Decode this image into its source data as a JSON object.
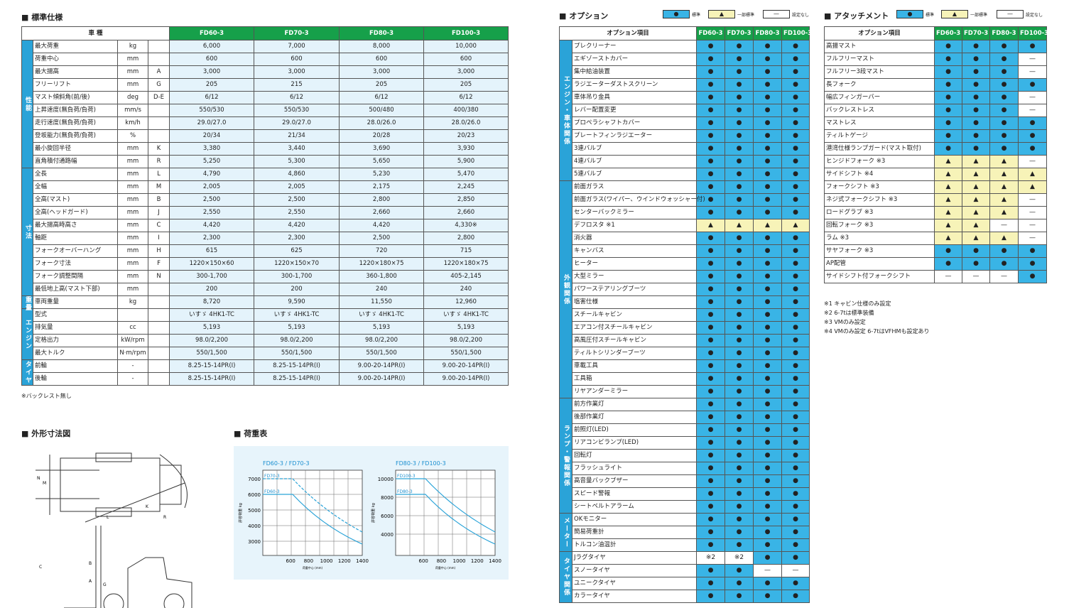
{
  "spec": {
    "title": "■ 標準仕様",
    "header": [
      "車 種",
      "FD60-3",
      "FD70-3",
      "FD80-3",
      "FD100-3"
    ],
    "groups": [
      {
        "label": "性能",
        "rows": [
          [
            "最大荷重",
            "kg",
            "",
            "6,000",
            "7,000",
            "8,000",
            "10,000"
          ],
          [
            "荷重中心",
            "mm",
            "",
            "600",
            "600",
            "600",
            "600"
          ],
          [
            "最大揚高",
            "mm",
            "A",
            "3,000",
            "3,000",
            "3,000",
            "3,000"
          ],
          [
            "フリーリフト",
            "mm",
            "G",
            "205",
            "215",
            "205",
            "205"
          ],
          [
            "マスト傾斜角(前/後)",
            "deg",
            "D-E",
            "6/12",
            "6/12",
            "6/12",
            "6/12"
          ],
          [
            "上昇速度(無負荷/負荷)",
            "mm/s",
            "",
            "550/530",
            "550/530",
            "500/480",
            "400/380"
          ],
          [
            "走行速度(無負荷/負荷)",
            "km/h",
            "",
            "29.0/27.0",
            "29.0/27.0",
            "28.0/26.0",
            "28.0/26.0"
          ],
          [
            "登坂能力(無負荷/負荷)",
            "%",
            "",
            "20/34",
            "21/34",
            "20/28",
            "20/23"
          ],
          [
            "最小旋回半径",
            "mm",
            "K",
            "3,380",
            "3,440",
            "3,690",
            "3,930"
          ],
          [
            "直角積付通路幅",
            "mm",
            "R",
            "5,250",
            "5,300",
            "5,650",
            "5,900"
          ]
        ]
      },
      {
        "label": "寸法",
        "rows": [
          [
            "全長",
            "mm",
            "L",
            "4,790",
            "4,860",
            "5,230",
            "5,470"
          ],
          [
            "全幅",
            "mm",
            "M",
            "2,005",
            "2,005",
            "2,175",
            "2,245"
          ],
          [
            "全高(マスト)",
            "mm",
            "B",
            "2,500",
            "2,500",
            "2,800",
            "2,850"
          ],
          [
            "全高(ヘッドガード)",
            "mm",
            "J",
            "2,550",
            "2,550",
            "2,660",
            "2,660"
          ],
          [
            "最大揚高時高さ",
            "mm",
            "C",
            "4,420",
            "4,420",
            "4,420",
            "4,330※"
          ],
          [
            "軸距",
            "mm",
            "I",
            "2,300",
            "2,300",
            "2,500",
            "2,800"
          ],
          [
            "フォークオーバーハング",
            "mm",
            "H",
            "615",
            "625",
            "720",
            "715"
          ],
          [
            "フォーク寸法",
            "mm",
            "F",
            "1220×150×60",
            "1220×150×70",
            "1220×180×75",
            "1220×180×75"
          ],
          [
            "フォーク調整間隔",
            "mm",
            "N",
            "300-1,700",
            "300-1,700",
            "360-1,800",
            "405-2,145"
          ],
          [
            "最低地上高(マスト下部)",
            "mm",
            "",
            "200",
            "200",
            "240",
            "240"
          ]
        ]
      },
      {
        "label": "重量",
        "rows": [
          [
            "車両重量",
            "kg",
            "",
            "8,720",
            "9,590",
            "11,550",
            "12,960"
          ]
        ]
      },
      {
        "label": "エンジン",
        "rows": [
          [
            "型式",
            "",
            "",
            "いすゞ 4HK1-TC",
            "いすゞ 4HK1-TC",
            "いすゞ 4HK1-TC",
            "いすゞ 4HK1-TC"
          ],
          [
            "排気量",
            "cc",
            "",
            "5,193",
            "5,193",
            "5,193",
            "5,193"
          ],
          [
            "定格出力",
            "kW/rpm",
            "",
            "98.0/2,200",
            "98.0/2,200",
            "98.0/2,200",
            "98.0/2,200"
          ],
          [
            "最大トルク",
            "N·m/rpm",
            "",
            "550/1,500",
            "550/1,500",
            "550/1,500",
            "550/1,500"
          ]
        ]
      },
      {
        "label": "タイヤ",
        "rows": [
          [
            "前輪",
            "-",
            "",
            "8.25-15-14PR(I)",
            "8.25-15-14PR(I)",
            "9.00-20-14PR(I)",
            "9.00-20-14PR(I)"
          ],
          [
            "後輪",
            "-",
            "",
            "8.25-15-14PR(I)",
            "8.25-15-14PR(I)",
            "9.00-20-14PR(I)",
            "9.00-20-14PR(I)"
          ]
        ]
      }
    ],
    "note": "※バックレスト無し"
  },
  "diagram": {
    "title": "■ 外形寸法図",
    "labels": [
      "N",
      "M",
      "K",
      "R",
      "L",
      "C",
      "A",
      "G",
      "B"
    ]
  },
  "load_table": {
    "title": "■ 荷重表",
    "charts": [
      {
        "title": "FD60-3 / FD70-3",
        "yticks": [
          "7000",
          "6000",
          "5000",
          "4000",
          "3000"
        ],
        "xticks": [
          "600",
          "800",
          "1000",
          "1200",
          "1400"
        ],
        "series": [
          "FD70-3",
          "FD60-3"
        ],
        "ylabel": "許容荷重 kg",
        "xlabel": "荷重中心 (mm)"
      },
      {
        "title": "FD80-3 / FD100-3",
        "yticks": [
          "10000",
          "8000",
          "6000",
          "4000"
        ],
        "xticks": [
          "600",
          "800",
          "1000",
          "1200",
          "1400"
        ],
        "series": [
          "FD100-3",
          "FD80-3"
        ],
        "ylabel": "許容荷重 kg",
        "xlabel": "荷重中心 (mm)"
      }
    ]
  },
  "options": {
    "title": "■ オプション",
    "legend": [
      {
        "symbol": "●",
        "label": "標準"
      },
      {
        "symbol": "▲",
        "label": "一部標準"
      },
      {
        "symbol": "—",
        "label": "設定なし"
      }
    ],
    "header": [
      "オプション項目",
      "FD60-3",
      "FD70-3",
      "FD80-3",
      "FD100-3"
    ],
    "groups": [
      {
        "label": "エンジン・車体関係",
        "rows": [
          [
            "プレクリーナー",
            "●",
            "●",
            "●",
            "●"
          ],
          [
            "エギゾーストカバー",
            "●",
            "●",
            "●",
            "●"
          ],
          [
            "集中給油装置",
            "●",
            "●",
            "●",
            "●"
          ],
          [
            "ラジエーターダストスクリーン",
            "●",
            "●",
            "●",
            "●"
          ],
          [
            "車体吊り金具",
            "●",
            "●",
            "●",
            "●"
          ],
          [
            "レバー配置変更",
            "●",
            "●",
            "●",
            "●"
          ],
          [
            "プロペラシャフトカバー",
            "●",
            "●",
            "●",
            "●"
          ],
          [
            "プレートフィンラジエーター",
            "●",
            "●",
            "●",
            "●"
          ],
          [
            "3連バルブ",
            "●",
            "●",
            "●",
            "●"
          ],
          [
            "4連バルブ",
            "●",
            "●",
            "●",
            "●"
          ],
          [
            "5連バルブ",
            "●",
            "●",
            "●",
            "●"
          ]
        ]
      },
      {
        "label": "外観関係",
        "rows": [
          [
            "前面ガラス",
            "●",
            "●",
            "●",
            "●"
          ],
          [
            "前面ガラス(ワイパー、ウインドウォッシャー付)",
            "●",
            "●",
            "●",
            "●"
          ],
          [
            "センターバックミラー",
            "●",
            "●",
            "●",
            "●"
          ],
          [
            "デフロスタ ※1",
            "▲",
            "▲",
            "▲",
            "▲"
          ],
          [
            "消火器",
            "●",
            "●",
            "●",
            "●"
          ],
          [
            "キャンバス",
            "●",
            "●",
            "●",
            "●"
          ],
          [
            "ヒーター",
            "●",
            "●",
            "●",
            "●"
          ],
          [
            "大型ミラー",
            "●",
            "●",
            "●",
            "●"
          ],
          [
            "パワーステアリングブーツ",
            "●",
            "●",
            "●",
            "●"
          ],
          [
            "塩害仕様",
            "●",
            "●",
            "●",
            "●"
          ],
          [
            "スチールキャビン",
            "●",
            "●",
            "●",
            "●"
          ],
          [
            "エアコン付スチールキャビン",
            "●",
            "●",
            "●",
            "●"
          ],
          [
            "高風圧付スチールキャビン",
            "●",
            "●",
            "●",
            "●"
          ],
          [
            "ティルトシリンダーブーツ",
            "●",
            "●",
            "●",
            "●"
          ],
          [
            "車載工具",
            "●",
            "●",
            "●",
            "●"
          ],
          [
            "工具箱",
            "●",
            "●",
            "●",
            "●"
          ],
          [
            "リヤアンダーミラー",
            "●",
            "●",
            "●",
            "●"
          ]
        ]
      },
      {
        "label": "ランプ・警報関係",
        "rows": [
          [
            "前方作業灯",
            "●",
            "●",
            "●",
            "●"
          ],
          [
            "後部作業灯",
            "●",
            "●",
            "●",
            "●"
          ],
          [
            "前照灯(LED)",
            "●",
            "●",
            "●",
            "●"
          ],
          [
            "リアコンビランプ(LED)",
            "●",
            "●",
            "●",
            "●"
          ],
          [
            "回転灯",
            "●",
            "●",
            "●",
            "●"
          ],
          [
            "フラッシュライト",
            "●",
            "●",
            "●",
            "●"
          ],
          [
            "高音量バックブザー",
            "●",
            "●",
            "●",
            "●"
          ],
          [
            "スピード警報",
            "●",
            "●",
            "●",
            "●"
          ],
          [
            "シートベルトアラーム",
            "●",
            "●",
            "●",
            "●"
          ]
        ]
      },
      {
        "label": "メーター",
        "rows": [
          [
            "OKモニター",
            "●",
            "●",
            "●",
            "●"
          ],
          [
            "簡易荷重計",
            "●",
            "●",
            "●",
            "●"
          ],
          [
            "トルコン油温計",
            "●",
            "●",
            "●",
            "●"
          ]
        ]
      },
      {
        "label": "タイヤ関係",
        "rows": [
          [
            "Jラグタイヤ",
            "※2",
            "※2",
            "●",
            "●"
          ],
          [
            "スノータイヤ",
            "●",
            "●",
            "—",
            "—"
          ],
          [
            "ユニークタイヤ",
            "●",
            "●",
            "●",
            "●"
          ],
          [
            "カラータイヤ",
            "●",
            "●",
            "●",
            "●"
          ]
        ]
      }
    ]
  },
  "attachments": {
    "title": "■ アタッチメント",
    "legend": [
      {
        "symbol": "●",
        "label": "標準"
      },
      {
        "symbol": "▲",
        "label": "一部標準"
      },
      {
        "symbol": "—",
        "label": "設定なし"
      }
    ],
    "header": [
      "オプション項目",
      "FD60-3",
      "FD70-3",
      "FD80-3",
      "FD100-3"
    ],
    "rows": [
      [
        "高揚マスト",
        "●",
        "●",
        "●",
        "●"
      ],
      [
        "フルフリーマスト",
        "●",
        "●",
        "●",
        "—"
      ],
      [
        "フルフリー3段マスト",
        "●",
        "●",
        "●",
        "—"
      ],
      [
        "長フォーク",
        "●",
        "●",
        "●",
        "●"
      ],
      [
        "幅広フィンガーバー",
        "●",
        "●",
        "●",
        "—"
      ],
      [
        "バックレストレス",
        "●",
        "●",
        "●",
        "—"
      ],
      [
        "マストレス",
        "●",
        "●",
        "●",
        "●"
      ],
      [
        "ティルトゲージ",
        "●",
        "●",
        "●",
        "●"
      ],
      [
        "港湾仕様ランプガード(マスト取付)",
        "●",
        "●",
        "●",
        "●"
      ],
      [
        "ヒンジドフォーク ※3",
        "▲",
        "▲",
        "▲",
        "—"
      ],
      [
        "サイドシフト ※4",
        "▲",
        "▲",
        "▲",
        "▲"
      ],
      [
        "フォークシフト ※3",
        "▲",
        "▲",
        "▲",
        "▲"
      ],
      [
        "ネジ式フォークシフト ※3",
        "▲",
        "▲",
        "▲",
        "—"
      ],
      [
        "ロードグラブ ※3",
        "▲",
        "▲",
        "▲",
        "—"
      ],
      [
        "回転フォーク ※3",
        "▲",
        "▲",
        "—",
        "—"
      ],
      [
        "ラム ※3",
        "▲",
        "▲",
        "▲",
        "—"
      ],
      [
        "サヤフォーク ※3",
        "●",
        "●",
        "●",
        "●"
      ],
      [
        "AP配管",
        "●",
        "●",
        "●",
        "●"
      ],
      [
        "サイドシフト付フォークシフト",
        "—",
        "—",
        "—",
        "●"
      ]
    ],
    "notes": [
      "※1 キャビン仕様のみ設定",
      "※2 6-7tは標準装備",
      "※3 VMのみ設定",
      "※4 VMのみ設定 6-7tはVFHMも設定あり"
    ]
  }
}
